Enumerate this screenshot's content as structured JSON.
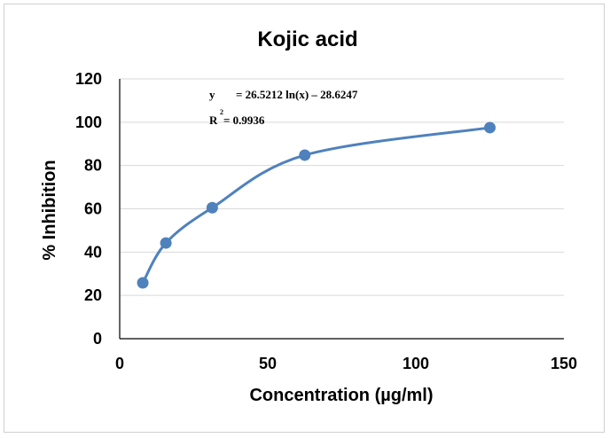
{
  "chart_data": {
    "type": "scatter",
    "title": "Kojic acid",
    "xlabel": "Concentration (µg/ml)",
    "ylabel": "% Inhibition",
    "xlim": [
      0,
      150
    ],
    "ylim": [
      0,
      120
    ],
    "xticks": [
      "0",
      "50",
      "100",
      "150"
    ],
    "yticks": [
      "0",
      "20",
      "40",
      "60",
      "80",
      "100",
      "120"
    ],
    "grid": "horizontal",
    "legend": "none",
    "series": [
      {
        "x": [
          7.8,
          15.6,
          31.25,
          62.5,
          125
        ],
        "y": [
          25.8,
          44.2,
          60.5,
          84.8,
          97.5
        ],
        "color": "#4f81bd",
        "smooth": true
      }
    ],
    "annotations": {
      "equation_prefix": "y",
      "equation_body": "= 26.5212 ln(x) – 28.6247",
      "r2_prefix": "R",
      "r2_superscript": "2",
      "r2_value": "= 0.9936"
    }
  }
}
